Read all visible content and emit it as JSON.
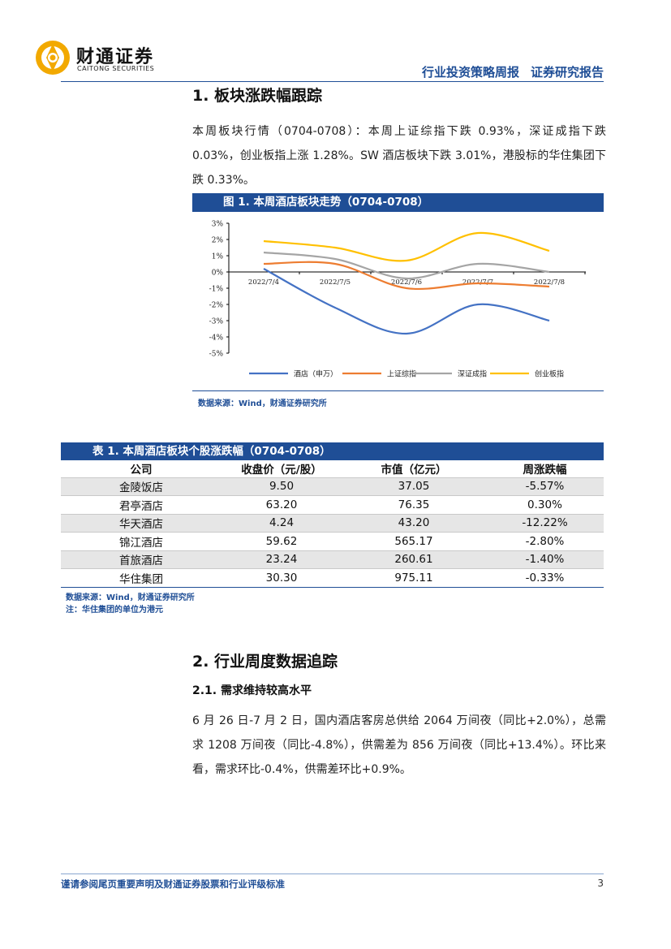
{
  "header": {
    "logo_cn": "财通证券",
    "logo_en": "CAITONG SECURITIES",
    "report_type": "行业投资策略周报",
    "report_category": "证券研究报告"
  },
  "section1": {
    "title": "1. 板块涨跌幅跟踪",
    "paragraph": "本周板块行情（0704-0708）：本周上证综指下跌 0.93%，深证成指下跌 0.03%，创业板指上涨 1.28%。SW 酒店板块下跌 3.01%，港股标的华住集团下跌 0.33%。"
  },
  "figure1": {
    "caption": "图 1. 本周酒店板块走势（0704-0708）",
    "source": "数据来源：Wind，财通证券研究所"
  },
  "chart_data": {
    "type": "line",
    "title": "本周酒店板块走势（0704-0708）",
    "categories": [
      "2022/7/4",
      "2022/7/5",
      "2022/7/6",
      "2022/7/7",
      "2022/7/8"
    ],
    "series": [
      {
        "name": "酒店（申万）",
        "color": "#4472c4",
        "values": [
          0.2,
          -2.2,
          -3.8,
          -2.0,
          -3.0
        ]
      },
      {
        "name": "上证综指",
        "color": "#ed7d31",
        "values": [
          0.5,
          0.5,
          -1.0,
          -0.7,
          -0.9
        ]
      },
      {
        "name": "深证成指",
        "color": "#a5a5a5",
        "values": [
          1.2,
          0.8,
          -0.4,
          0.5,
          0.0
        ]
      },
      {
        "name": "创业板指",
        "color": "#ffc000",
        "values": [
          1.9,
          1.5,
          0.7,
          2.4,
          1.3
        ]
      }
    ],
    "y_ticks": [
      "3%",
      "2%",
      "1%",
      "0%",
      "-1%",
      "-2%",
      "-3%",
      "-4%",
      "-5%"
    ],
    "ylim": [
      -5,
      3
    ],
    "legend_position": "bottom",
    "grid": false
  },
  "table1": {
    "caption": "表 1. 本周酒店板块个股涨跌幅（0704-0708）",
    "headers": [
      "公司",
      "收盘价（元/股）",
      "市值（亿元）",
      "周涨跌幅"
    ],
    "rows": [
      [
        "金陵饭店",
        "9.50",
        "37.05",
        "-5.57%"
      ],
      [
        "君亭酒店",
        "63.20",
        "76.35",
        "0.30%"
      ],
      [
        "华天酒店",
        "4.24",
        "43.20",
        "-12.22%"
      ],
      [
        "锦江酒店",
        "59.62",
        "565.17",
        "-2.80%"
      ],
      [
        "首旅酒店",
        "23.24",
        "260.61",
        "-1.40%"
      ],
      [
        "华住集团",
        "30.30",
        "975.11",
        "-0.33%"
      ]
    ],
    "source": "数据来源：Wind，财通证券研究所",
    "note": "注：华住集团的单位为港元"
  },
  "section2": {
    "title": "2. 行业周度数据追踪",
    "sub_title": "2.1. 需求维持较高水平",
    "paragraph": "6 月 26 日-7 月 2 日，国内酒店客房总供给 2064 万间夜（同比+2.0%），总需求 1208 万间夜（同比-4.8%），供需差为 856 万间夜（同比+13.4%）。环比来看，需求环比-0.4%，供需差环比+0.9%。"
  },
  "footer": {
    "disclaimer": "谨请参阅尾页重要声明及财通证券股票和行业评级标准",
    "page": "3"
  }
}
